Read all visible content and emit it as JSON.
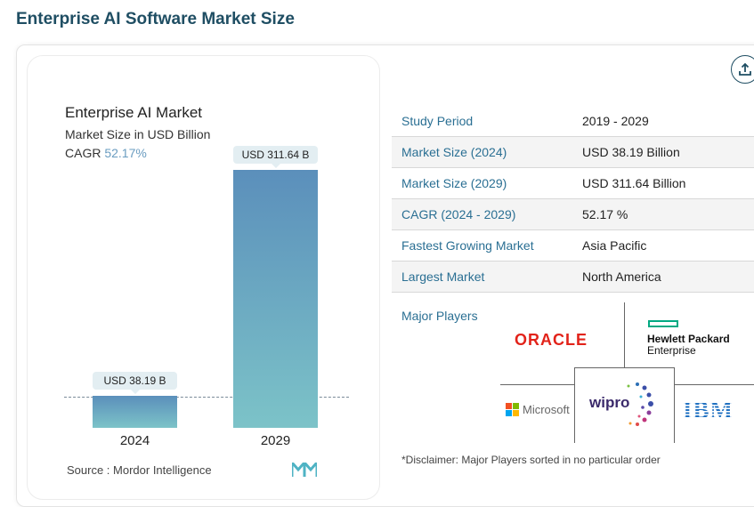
{
  "page": {
    "title": "Enterprise AI Software Market Size"
  },
  "chart": {
    "title": "Enterprise AI Market",
    "subtitle": "Market Size in USD Billion",
    "cagr_label": "CAGR",
    "cagr_value": "52.17%",
    "source": "Source :  Mordor Intelligence",
    "bar_labels": [
      "USD 38.19 B",
      "USD 311.64 B"
    ]
  },
  "chart_data": {
    "type": "bar",
    "categories": [
      "2024",
      "2029"
    ],
    "values": [
      38.19,
      311.64
    ],
    "title": "Enterprise AI Market",
    "ylabel": "Market Size in USD Billion",
    "colors": [
      "#5b8fbb",
      "#7cc3c8"
    ]
  },
  "table": {
    "rows": [
      {
        "label": "Study Period",
        "value": "2019 - 2029"
      },
      {
        "label": "Market Size (2024)",
        "value": "USD 38.19 Billion"
      },
      {
        "label": "Market Size (2029)",
        "value": "USD 311.64 Billion"
      },
      {
        "label": "CAGR (2024 - 2029)",
        "value": "52.17 %"
      },
      {
        "label": "Fastest Growing Market",
        "value": "Asia Pacific"
      },
      {
        "label": "Largest Market",
        "value": "North America"
      }
    ]
  },
  "players": {
    "label": "Major Players",
    "logos": [
      "ORACLE",
      "Hewlett Packard",
      "Enterprise",
      "Microsoft",
      "wipro",
      "IBM"
    ],
    "disclaimer": "*Disclaimer: Major Players sorted in no particular order"
  },
  "colors": {
    "heading": "#1f4e63",
    "label": "#2a6f93",
    "oracle": "#e2231a",
    "ibm": "#1f70c1",
    "hpe": "#01a982"
  }
}
